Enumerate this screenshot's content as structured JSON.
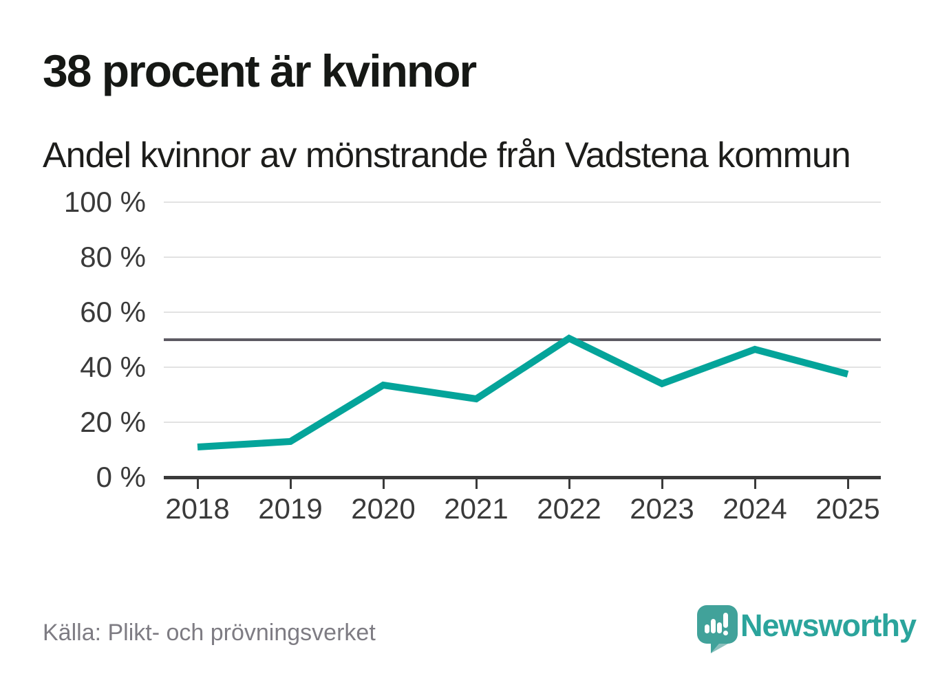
{
  "header": {
    "title": "38 procent är kvinnor",
    "subtitle": "Andel kvinnor av mönstrande från Vadstena kommun"
  },
  "footer": {
    "source": "Källa: Plikt- och prövningsverket",
    "brand_name": "Newsworthy",
    "brand_icon": "speech-bubble-bar-chart-icon"
  },
  "colors": {
    "line": "#04a49a",
    "reference_line": "#5d5a63",
    "gridline": "#e2e2e2",
    "axis": "#3a3a3a",
    "axis_label": "#3a3a3a",
    "title_text": "#161815",
    "source_text": "#7e7c83",
    "brand_teal": "#2ba49c",
    "logo_bubble": "#41a29a",
    "logo_bubble_shadow": "#2e8d86"
  },
  "chart_data": {
    "type": "line",
    "title": "38 procent är kvinnor",
    "subtitle": "Andel kvinnor av mönstrande från Vadstena kommun",
    "categories": [
      "2018",
      "2019",
      "2020",
      "2021",
      "2022",
      "2023",
      "2024",
      "2025"
    ],
    "series": [
      {
        "name": "Andel kvinnor av mönstrande",
        "values": [
          11,
          13,
          33.5,
          28.5,
          50.5,
          34,
          46.5,
          37.5
        ]
      }
    ],
    "unit": "%",
    "ylim": [
      0,
      100
    ],
    "yticks": [
      0,
      20,
      40,
      60,
      80,
      100
    ],
    "ytick_labels": [
      "0 %",
      "20 %",
      "40 %",
      "60 %",
      "80 %",
      "100 %"
    ],
    "reference_line": 50,
    "grid": "horizontal-only",
    "legend": "none",
    "xlabel": "",
    "ylabel": ""
  }
}
